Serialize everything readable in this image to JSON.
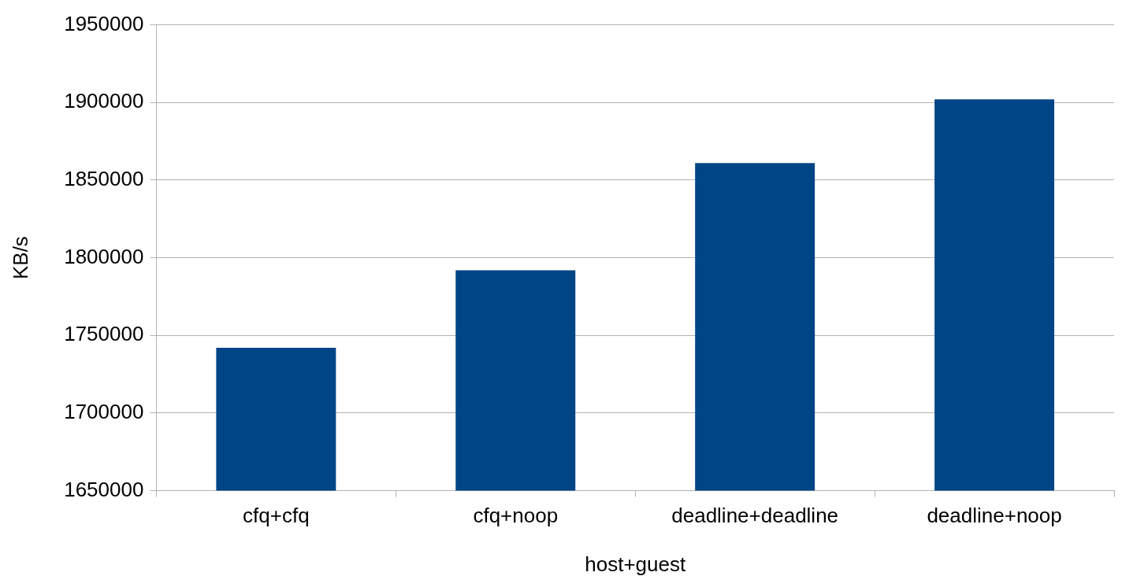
{
  "chart_data": {
    "type": "bar",
    "xlabel": "host+guest",
    "ylabel": "KB/s",
    "categories": [
      "cfq+cfq",
      "cfq+noop",
      "deadline+deadline",
      "deadline+noop"
    ],
    "values": [
      1742000,
      1792000,
      1861000,
      1902000
    ],
    "color": "#004586",
    "ylim": [
      1650000,
      1950000
    ],
    "yticks": [
      1650000,
      1700000,
      1750000,
      1800000,
      1850000,
      1900000,
      1950000
    ],
    "grid": "y",
    "legend": false
  }
}
